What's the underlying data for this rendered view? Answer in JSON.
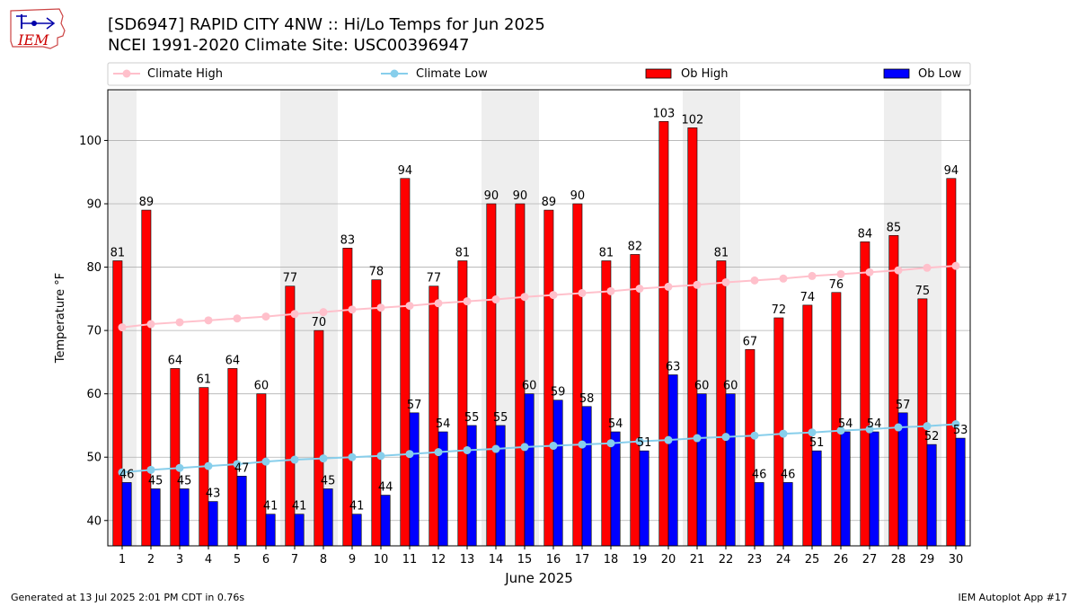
{
  "header": {
    "title_line1": "[SD6947] RAPID CITY 4NW :: Hi/Lo Temps for Jun 2025",
    "title_line2": "NCEI 1991-2020 Climate Site: USC00396947",
    "logo_text": "IEM"
  },
  "footer": {
    "left": "Generated at 13 Jul 2025 2:01 PM CDT in 0.76s",
    "right": "IEM Autoplot App #17"
  },
  "colors": {
    "ob_high": "#ff0000",
    "ob_low": "#0000ff",
    "climate_high": "#ffc0cb",
    "climate_low": "#87ceeb",
    "weekend_shade": "#eeeeee",
    "grid": "#b0b0b0"
  },
  "chart_data": {
    "type": "bar",
    "xlabel": "June 2025",
    "ylabel": "Temperature °F",
    "ylim": [
      36,
      108
    ],
    "yticks": [
      40,
      50,
      60,
      70,
      80,
      90,
      100
    ],
    "grid": "horizontal",
    "legend_position": "top",
    "categories": [
      "1",
      "2",
      "3",
      "4",
      "5",
      "6",
      "7",
      "8",
      "9",
      "10",
      "11",
      "12",
      "13",
      "14",
      "15",
      "16",
      "17",
      "18",
      "19",
      "20",
      "21",
      "22",
      "23",
      "24",
      "25",
      "26",
      "27",
      "28",
      "29",
      "30"
    ],
    "shaded_days": [
      1,
      7,
      8,
      14,
      15,
      21,
      22,
      28,
      29
    ],
    "series": [
      {
        "name": "Ob High",
        "kind": "bar",
        "values": [
          81,
          89,
          64,
          61,
          64,
          60,
          77,
          70,
          83,
          78,
          94,
          77,
          81,
          90,
          90,
          89,
          90,
          81,
          82,
          103,
          102,
          81,
          67,
          72,
          74,
          76,
          84,
          85,
          75,
          94
        ]
      },
      {
        "name": "Ob Low",
        "kind": "bar",
        "values": [
          46,
          45,
          45,
          43,
          47,
          41,
          41,
          45,
          41,
          44,
          57,
          54,
          55,
          55,
          60,
          59,
          58,
          54,
          51,
          63,
          60,
          60,
          46,
          46,
          51,
          54,
          54,
          57,
          52,
          53
        ]
      },
      {
        "name": "Climate High",
        "kind": "line",
        "values": [
          70.5,
          71.0,
          71.3,
          71.6,
          71.9,
          72.2,
          72.6,
          72.9,
          73.3,
          73.6,
          73.9,
          74.3,
          74.6,
          74.9,
          75.3,
          75.6,
          75.9,
          76.2,
          76.6,
          76.9,
          77.2,
          77.6,
          77.9,
          78.2,
          78.6,
          78.9,
          79.2,
          79.5,
          79.9,
          80.2
        ]
      },
      {
        "name": "Climate Low",
        "kind": "line",
        "values": [
          47.6,
          48.0,
          48.3,
          48.6,
          48.9,
          49.3,
          49.6,
          49.8,
          50.0,
          50.2,
          50.5,
          50.8,
          51.1,
          51.3,
          51.6,
          51.8,
          52.0,
          52.2,
          52.5,
          52.7,
          53.0,
          53.2,
          53.4,
          53.7,
          53.9,
          54.2,
          54.4,
          54.7,
          54.9,
          55.2
        ]
      }
    ]
  }
}
